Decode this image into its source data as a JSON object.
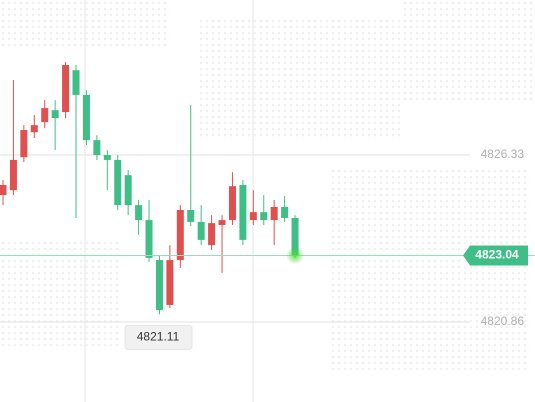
{
  "chart_data": {
    "type": "candlestick",
    "open": [
      4825.02,
      4825.18,
      4826.26,
      4827.08,
      4827.41,
      4827.8,
      4827.74,
      4829.11,
      4828.3,
      4826.82,
      4826.33,
      4826.17,
      4825.67,
      4824.69,
      4824.2,
      4822.89,
      4821.42,
      4822.89,
      4824.53,
      4824.14,
      4823.38,
      4824.04,
      4824.2,
      4825.35,
      4824.2,
      4824.46,
      4824.2,
      4824.63,
      4824.27
    ],
    "high": [
      4825.51,
      4828.79,
      4827.31,
      4827.64,
      4828.13,
      4828.13,
      4829.38,
      4829.28,
      4828.46,
      4826.98,
      4826.49,
      4826.33,
      4825.84,
      4824.86,
      4824.86,
      4823.05,
      4823.38,
      4824.69,
      4827.97,
      4824.69,
      4824.36,
      4824.36,
      4825.77,
      4825.51,
      4825.18,
      4825.02,
      4824.86,
      4824.99,
      4824.36
    ],
    "low": [
      4824.69,
      4825.02,
      4826.1,
      4826.89,
      4827.21,
      4826.49,
      4827.54,
      4824.27,
      4826.66,
      4826.17,
      4825.18,
      4824.53,
      4824.36,
      4823.71,
      4822.83,
      4821.11,
      4821.32,
      4822.63,
      4824.01,
      4823.38,
      4823.22,
      4822.47,
      4824.04,
      4823.38,
      4824.04,
      4824.04,
      4823.38,
      4824.14,
      4822.96
    ],
    "close": [
      4825.35,
      4826.17,
      4827.15,
      4827.31,
      4827.87,
      4827.54,
      4829.28,
      4828.3,
      4826.82,
      4826.33,
      4826.17,
      4824.69,
      4824.69,
      4824.2,
      4822.96,
      4821.25,
      4822.89,
      4824.53,
      4824.14,
      4823.55,
      4824.1,
      4824.2,
      4825.31,
      4823.55,
      4824.46,
      4824.2,
      4824.63,
      4824.27,
      4823.04
    ],
    "up_color": "#e0504f",
    "down_color": "#3fbf87",
    "ylim": [
      4818.24,
      4831.41
    ],
    "yticks": [
      4826.33,
      4820.86
    ],
    "grid": true,
    "last_price": 4823.04,
    "low_label": 4821.11
  }
}
